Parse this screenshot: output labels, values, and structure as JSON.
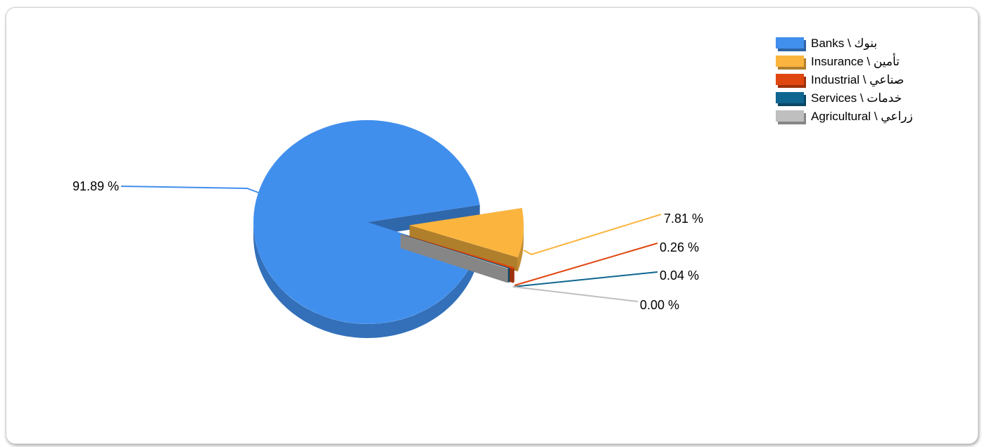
{
  "chart_data": {
    "type": "pie",
    "style": "3d-exploded",
    "legend_position": "top-right",
    "title": "",
    "series": [
      {
        "name": "Banks \\ بنوك",
        "value": 91.89,
        "label": "91.89 %",
        "color": "#418fed"
      },
      {
        "name": "Insurance \\ تأمين",
        "value": 7.81,
        "label": "7.81 %",
        "color": "#fbb53f"
      },
      {
        "name": "Industrial \\ صناعي",
        "value": 0.26,
        "label": "0.26 %",
        "color": "#e0460f"
      },
      {
        "name": "Services \\ خدمات",
        "value": 0.04,
        "label": "0.04 %",
        "color": "#0f6690"
      },
      {
        "name": "Agricultural \\ زراعي",
        "value": 0.0,
        "label": "0.00 %",
        "color": "#bfbfbf"
      }
    ]
  }
}
